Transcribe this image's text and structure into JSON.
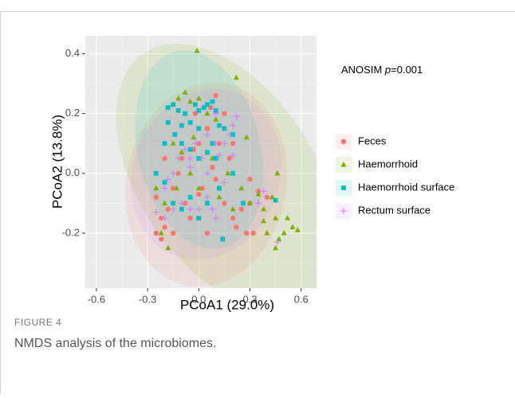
{
  "chart_data": {
    "type": "scatter",
    "x_label": "PCoA1 (29.0%)",
    "y_label": "PCoA2 (13.8%)",
    "annotation": [
      "ANOSIM ",
      "p",
      "=0.001"
    ],
    "xlim": [
      -0.665,
      0.69
    ],
    "ylim": [
      -0.384,
      0.46
    ],
    "xticks": [
      -0.6,
      -0.3,
      {
        "value": 0,
        "label": "0.0"
      },
      0.3,
      0.6
    ],
    "yticks": [
      0.4,
      0.2,
      {
        "value": 0,
        "label": "0.0"
      },
      -0.2
    ],
    "grid": true,
    "ellipses": true,
    "legend_position": "right",
    "series": [
      {
        "name": "Feces",
        "color": "#F8766D",
        "marker": "circle",
        "x": [
          -0.25,
          -0.22,
          -0.2,
          -0.18,
          -0.15,
          -0.12,
          -0.1,
          -0.08,
          -0.05,
          -0.03,
          0.0,
          0.02,
          0.05,
          0.07,
          0.1,
          0.12,
          0.15,
          0.18,
          0.2,
          0.22,
          0.25,
          0.28,
          0.3,
          0.32,
          0.35,
          0.05,
          0.0,
          -0.2,
          -0.25,
          0.1,
          -0.15,
          0.08,
          -0.02,
          0.15,
          0.3,
          -0.22,
          0.2,
          0.4
        ],
        "y": [
          -0.2,
          -0.22,
          -0.18,
          -0.12,
          -0.05,
          0.0,
          0.05,
          -0.1,
          -0.15,
          0.08,
          0.1,
          -0.05,
          0.15,
          0.22,
          0.26,
          0.1,
          -0.1,
          0.05,
          -0.15,
          -0.18,
          -0.12,
          -0.2,
          -0.1,
          -0.2,
          -0.06,
          -0.2,
          -0.07,
          0.05,
          -0.08,
          -0.02,
          -0.2,
          0.02,
          0.2,
          0.2,
          -0.02,
          -0.15,
          0.1,
          -0.08
        ]
      },
      {
        "name": "Haemorrhoid",
        "color": "#7CAE00",
        "marker": "triangle",
        "x": [
          -0.01,
          0.22,
          -0.12,
          -0.08,
          -0.05,
          0.0,
          0.05,
          0.1,
          -0.15,
          -0.1,
          -0.05,
          0.0,
          -0.2,
          -0.25,
          -0.22,
          -0.18,
          0.25,
          0.3,
          0.35,
          0.38,
          0.43,
          0.45,
          0.47,
          0.5,
          0.52,
          0.55,
          0.58,
          0.45,
          0.4,
          0.12,
          0.17,
          0.08,
          -0.13,
          0.2,
          0.46,
          0.38,
          -0.03,
          0.28
        ],
        "y": [
          0.41,
          0.32,
          0.25,
          0.27,
          0.24,
          0.25,
          0.2,
          0.18,
          0.1,
          0.07,
          0.0,
          -0.05,
          -0.1,
          -0.05,
          -0.2,
          -0.25,
          -0.05,
          -0.1,
          -0.07,
          -0.12,
          -0.08,
          -0.15,
          -0.22,
          -0.2,
          -0.15,
          -0.18,
          -0.19,
          -0.25,
          -0.2,
          -0.08,
          0.0,
          0.05,
          -0.05,
          -0.12,
          0.0,
          -0.16,
          0.12,
          0.12
        ]
      },
      {
        "name": "Haemorrhoid surface",
        "color": "#00BFC4",
        "marker": "square",
        "x": [
          -0.18,
          -0.15,
          -0.12,
          -0.1,
          -0.08,
          -0.05,
          -0.02,
          0.0,
          0.03,
          0.05,
          0.08,
          0.1,
          0.12,
          -0.2,
          -0.18,
          -0.14,
          -0.1,
          -0.05,
          0.0,
          0.05,
          0.1,
          0.15,
          0.2,
          -0.2,
          -0.15,
          -0.1,
          -0.05,
          0.0,
          0.05,
          0.12,
          0.2,
          0.26,
          0.14,
          0.45,
          -0.25,
          0.0,
          0.08
        ],
        "y": [
          0.22,
          0.23,
          0.21,
          0.16,
          0.2,
          0.17,
          0.23,
          0.21,
          0.22,
          0.23,
          0.24,
          0.21,
          0.16,
          0.1,
          0.17,
          0.13,
          0.1,
          0.08,
          0.05,
          0.07,
          0.05,
          0.15,
          0.13,
          -0.03,
          -0.1,
          -0.12,
          -0.08,
          -0.15,
          -0.1,
          -0.05,
          0.0,
          -0.1,
          -0.22,
          -0.09,
          0.0,
          0.15,
          0.1
        ]
      },
      {
        "name": "Rectum surface",
        "color": "#C77CFF",
        "marker": "plus",
        "x": [
          -0.2,
          -0.18,
          -0.15,
          -0.12,
          -0.08,
          -0.05,
          -0.02,
          0.02,
          0.05,
          0.1,
          0.15,
          0.18,
          0.2,
          0.22,
          0.2,
          0.12,
          0.05,
          -0.1,
          -0.05,
          0.0,
          0.05,
          0.1,
          0.15,
          -0.2,
          -0.15,
          0.38,
          0.35,
          0.46,
          0.1,
          -0.05,
          0.08,
          -0.25
        ],
        "y": [
          -0.05,
          -0.02,
          0.0,
          0.05,
          0.08,
          0.02,
          0.1,
          0.05,
          0.0,
          0.1,
          0.1,
          0.13,
          0.16,
          0.19,
          0.06,
          0.06,
          0.13,
          -0.1,
          -0.12,
          -0.12,
          -0.08,
          -0.15,
          -0.03,
          -0.15,
          -0.12,
          -0.06,
          -0.1,
          -0.23,
          0.2,
          0.05,
          -0.12,
          -0.13
        ]
      }
    ]
  },
  "figure": {
    "label": "FIGURE 4",
    "caption": "NMDS analysis of the microbiomes."
  }
}
